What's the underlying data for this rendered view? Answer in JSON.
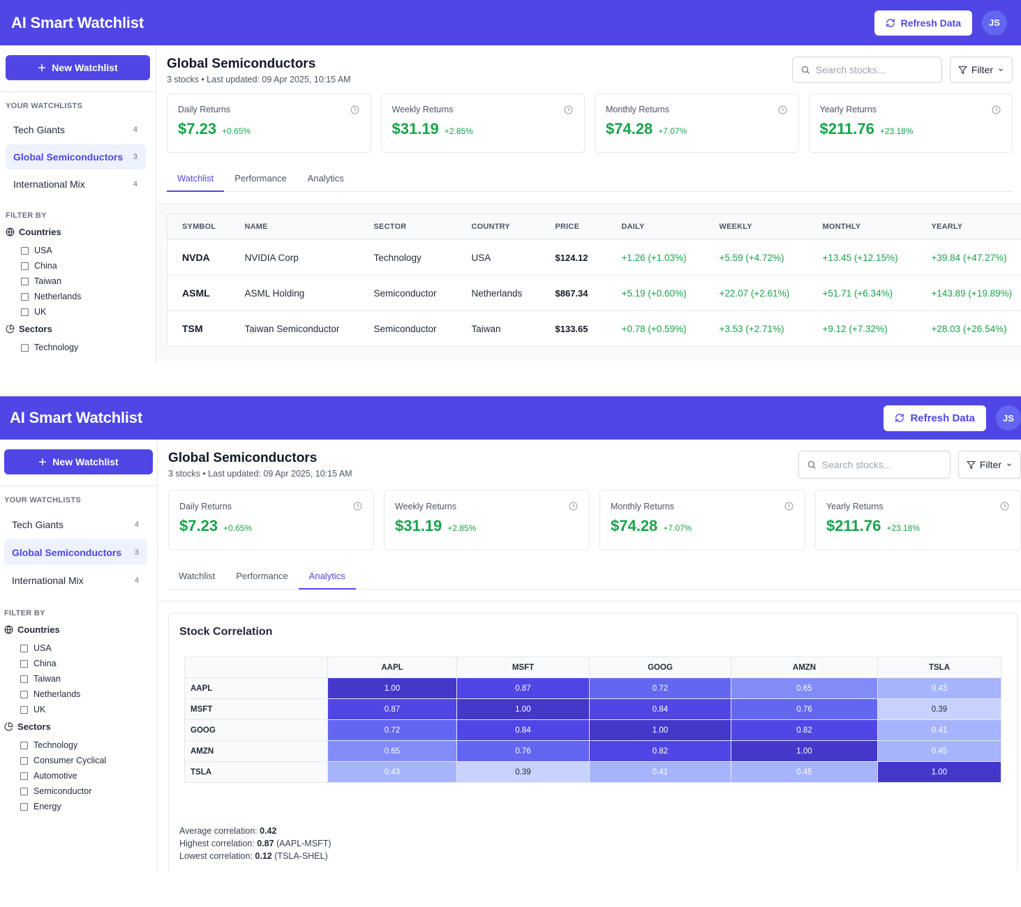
{
  "app": {
    "title": "AI Smart Watchlist",
    "refresh_label": "Refresh Data",
    "avatar_initials": "JS",
    "accent_color": "#4f46e5",
    "positive_color": "#16a34a"
  },
  "sidebar": {
    "new_watchlist_label": "New Watchlist",
    "watchlists_heading": "YOUR WATCHLISTS",
    "watchlists": [
      {
        "name": "Tech Giants",
        "count": "4",
        "active": false
      },
      {
        "name": "Global Semiconductors",
        "count": "3",
        "active": true
      },
      {
        "name": "International Mix",
        "count": "4",
        "active": false
      }
    ],
    "filter_heading": "FILTER BY",
    "countries_label": "Countries",
    "countries": [
      "USA",
      "China",
      "Taiwan",
      "Netherlands",
      "UK"
    ],
    "sectors_label": "Sectors",
    "sectors_view1": [
      "Technology"
    ],
    "sectors_view2": [
      "Technology",
      "Consumer Cyclical",
      "Automotive",
      "Semiconductor",
      "Energy"
    ]
  },
  "main": {
    "title": "Global Semiconductors",
    "subtitle": "3 stocks • Last updated: 09 Apr 2025, 10:15 AM",
    "search_placeholder": "Search stocks...",
    "filter_label": "Filter",
    "cards": [
      {
        "label": "Daily Returns",
        "value": "$7.23",
        "pct": "+0.65%"
      },
      {
        "label": "Weekly Returns",
        "value": "$31.19",
        "pct": "+2.85%"
      },
      {
        "label": "Monthly Returns",
        "value": "$74.28",
        "pct": "+7.07%"
      },
      {
        "label": "Yearly Returns",
        "value": "$211.76",
        "pct": "+23.18%"
      }
    ],
    "tabs": [
      "Watchlist",
      "Performance",
      "Analytics"
    ]
  },
  "table": {
    "headers": [
      "SYMBOL",
      "NAME",
      "SECTOR",
      "COUNTRY",
      "PRICE",
      "DAILY",
      "WEEKLY",
      "MONTHLY",
      "YEARLY"
    ],
    "rows": [
      [
        "NVDA",
        "NVIDIA Corp",
        "Technology",
        "USA",
        "$124.12",
        "+1.26 (+1.03%)",
        "+5.59 (+4.72%)",
        "+13.45 (+12.15%)",
        "+39.84 (+47.27%)"
      ],
      [
        "ASML",
        "ASML Holding",
        "Semiconductor",
        "Netherlands",
        "$867.34",
        "+5.19 (+0.60%)",
        "+22.07 (+2.61%)",
        "+51.71 (+6.34%)",
        "+143.89 (+19.89%)"
      ],
      [
        "TSM",
        "Taiwan Semiconductor",
        "Semiconductor",
        "Taiwan",
        "$133.65",
        "+0.78 (+0.59%)",
        "+3.53 (+2.71%)",
        "+9.12 (+7.32%)",
        "+28.03 (+26.54%)"
      ]
    ]
  },
  "correlation": {
    "title": "Stock Correlation",
    "symbols": [
      "AAPL",
      "MSFT",
      "GOOG",
      "AMZN",
      "TSLA"
    ],
    "matrix": [
      [
        "1.00",
        "0.87",
        "0.72",
        "0.65",
        "0.43"
      ],
      [
        "0.87",
        "1.00",
        "0.84",
        "0.76",
        "0.39"
      ],
      [
        "0.72",
        "0.84",
        "1.00",
        "0.82",
        "0.41"
      ],
      [
        "0.65",
        "0.76",
        "0.82",
        "1.00",
        "0.45"
      ],
      [
        "0.43",
        "0.39",
        "0.41",
        "0.45",
        "1.00"
      ]
    ],
    "stats": [
      {
        "label": "Average correlation:",
        "value": "0.42",
        "suffix": ""
      },
      {
        "label": "Highest correlation:",
        "value": "0.87",
        "suffix": "(AAPL-MSFT)"
      },
      {
        "label": "Lowest correlation:",
        "value": "0.12",
        "suffix": "(TSLA-SHEL)"
      }
    ],
    "scale_colors": {
      "very_high": "#4338ca",
      "high": "#4f46e5",
      "mid": "#6366f1",
      "low": "#818cf8",
      "lower": "#a5b4fc",
      "lowest": "#c7d2fe"
    }
  }
}
